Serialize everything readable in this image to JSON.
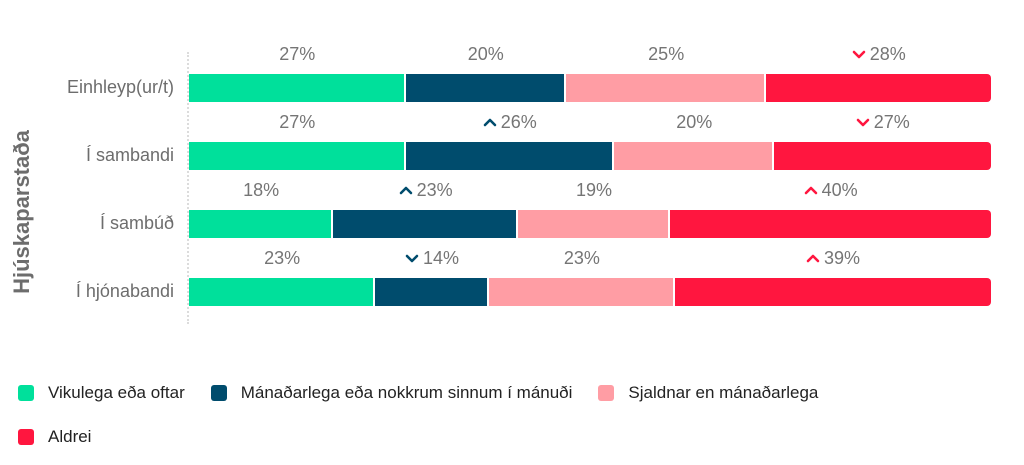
{
  "chart_data": {
    "type": "bar",
    "orientation": "horizontal",
    "stacked": true,
    "normalized_percent": true,
    "title": "",
    "ylabel": "Hjúskaparstaða",
    "xlabel": "",
    "categories": [
      "Einhleyp(ur/t)",
      "Í sambandi",
      "Í sambúð",
      "Í hjónabandi"
    ],
    "series": [
      {
        "name": "Vikulega eða oftar",
        "color": "#00e09b",
        "values": [
          27,
          27,
          18,
          23
        ],
        "labels": [
          "27%",
          "27%",
          "18%",
          "23%"
        ],
        "trend": [
          "",
          "",
          "",
          ""
        ]
      },
      {
        "name": "Mánaðarlega eða nokkrum sinnum í mánuði",
        "color": "#004c6d",
        "values": [
          20,
          26,
          23,
          14
        ],
        "labels": [
          "20%",
          "26%",
          "23%",
          "14%"
        ],
        "trend": [
          "",
          "up",
          "up",
          "down"
        ]
      },
      {
        "name": "Sjaldnar en mánaðarlega",
        "color": "#ff9da4",
        "values": [
          25,
          20,
          19,
          23
        ],
        "labels": [
          "25%",
          "20%",
          "19%",
          "23%"
        ],
        "trend": [
          "",
          "",
          "",
          ""
        ]
      },
      {
        "name": "Aldrei",
        "color": "#ff163f",
        "values": [
          28,
          27,
          40,
          39
        ],
        "labels": [
          "28%",
          "27%",
          "40%",
          "39%"
        ],
        "trend": [
          "down",
          "down",
          "up",
          "up"
        ]
      }
    ],
    "trend_colors": {
      "series_1": "#004c6d",
      "series_3": "#ff163f"
    },
    "legend_position": "bottom",
    "grid": false
  },
  "axis": {
    "title": "Hjúskaparstaða"
  },
  "legend": {
    "items": [
      {
        "label": "Vikulega eða oftar",
        "color": "#00e09b"
      },
      {
        "label": "Mánaðarlega eða nokkrum sinnum í mánuði",
        "color": "#004c6d"
      },
      {
        "label": "Sjaldnar en mánaðarlega",
        "color": "#ff9da4"
      },
      {
        "label": "Aldrei",
        "color": "#ff163f"
      }
    ]
  }
}
